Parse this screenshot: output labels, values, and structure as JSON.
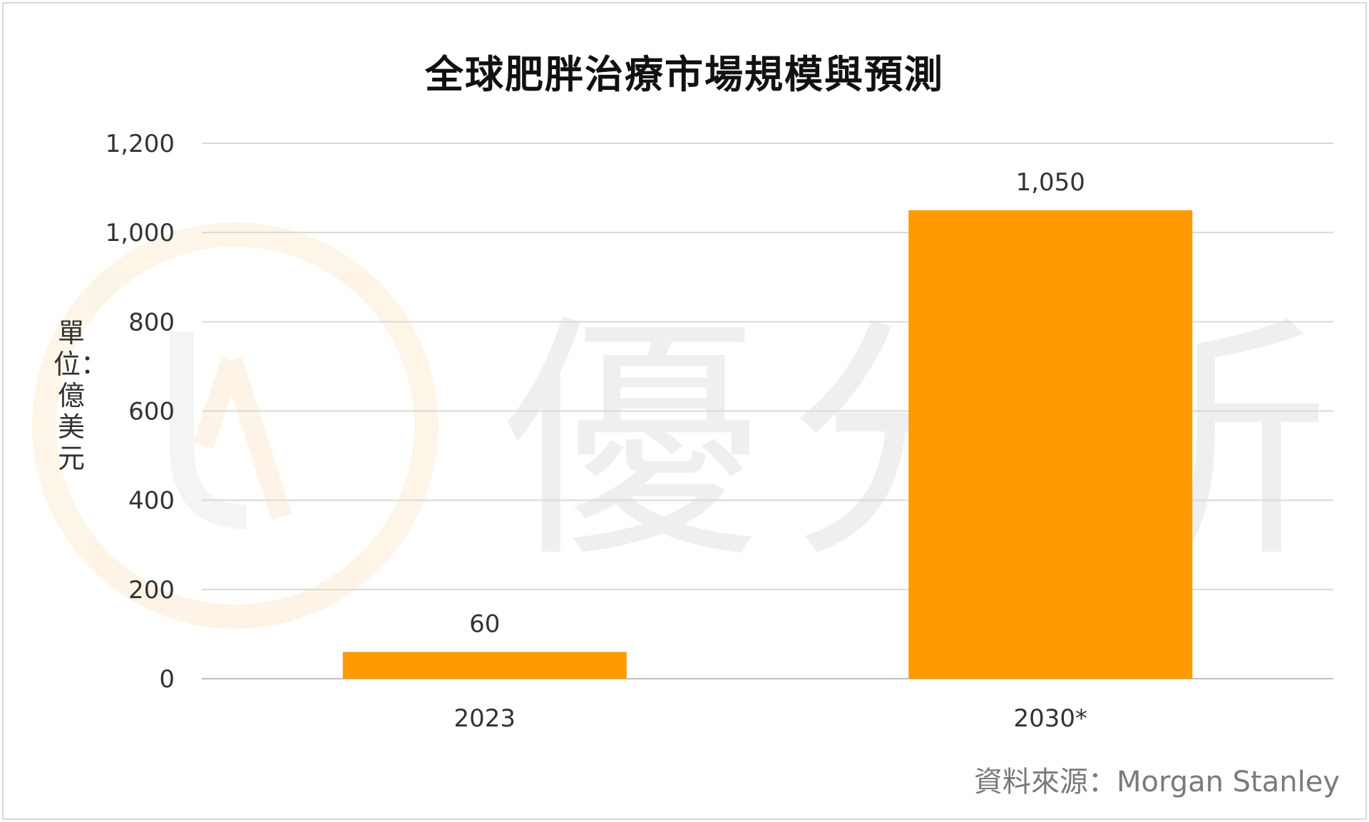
{
  "chart_data": {
    "type": "bar",
    "title": "全球肥胖治療市場規模與預測",
    "ylabel": "單位：億美元",
    "xlabel": "",
    "categories": [
      "2023",
      "2030*"
    ],
    "values": [
      60,
      1050
    ],
    "data_labels": [
      "60",
      "1,050"
    ],
    "y_ticks": [
      "0",
      "200",
      "400",
      "600",
      "800",
      "1,000",
      "1,200"
    ],
    "y_tick_values": [
      0,
      200,
      400,
      600,
      800,
      1000,
      1200
    ],
    "ylim": [
      0,
      1200
    ],
    "grid": true,
    "legend": "none",
    "bar_color": "#FF9900"
  },
  "source": "資料來源：Morgan Stanley",
  "watermark": {
    "text": "優分析",
    "logo_letters": "UA"
  }
}
